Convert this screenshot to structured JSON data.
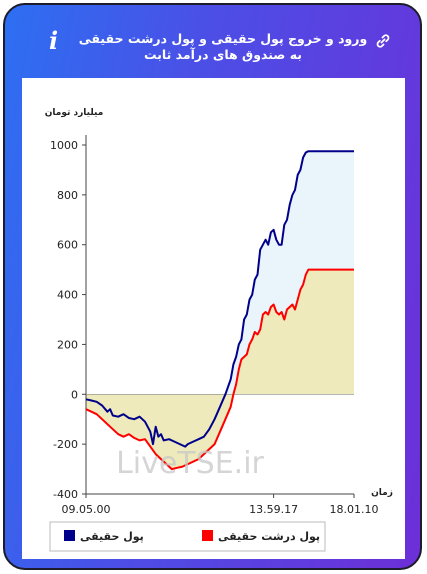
{
  "header": {
    "title": "ورود و خروج پول حقیقی و پول درشت حقیقی به صندوق های درآمد ثابت",
    "info_icon": "info-icon",
    "link_icon": "link-icon"
  },
  "watermark": "LiveTSE.ir",
  "chart_data": {
    "type": "line",
    "ylabel": "میلیارد تومان",
    "xlabel": "زمان",
    "ylim": [
      -400,
      1000
    ],
    "yticks": [
      -400,
      -200,
      0,
      200,
      400,
      600,
      800,
      1000
    ],
    "xtick_labels": [
      "09.05.00",
      "13.59.17",
      "18.01.10"
    ],
    "xlim": [
      0,
      100
    ],
    "xtick_positions": [
      0,
      70,
      100
    ],
    "grid": false,
    "legend_position": "bottom",
    "series": [
      {
        "name": "پول حقیقی",
        "color": "#00008b",
        "fill": "#eaf4fb",
        "points": [
          [
            0,
            -20
          ],
          [
            2,
            -25
          ],
          [
            4,
            -30
          ],
          [
            6,
            -45
          ],
          [
            8,
            -70
          ],
          [
            9,
            -60
          ],
          [
            10,
            -85
          ],
          [
            12,
            -90
          ],
          [
            14,
            -80
          ],
          [
            16,
            -95
          ],
          [
            18,
            -100
          ],
          [
            20,
            -90
          ],
          [
            22,
            -110
          ],
          [
            24,
            -150
          ],
          [
            25,
            -200
          ],
          [
            26,
            -130
          ],
          [
            27,
            -170
          ],
          [
            28,
            -160
          ],
          [
            29,
            -185
          ],
          [
            31,
            -180
          ],
          [
            33,
            -190
          ],
          [
            35,
            -200
          ],
          [
            37,
            -210
          ],
          [
            38,
            -200
          ],
          [
            40,
            -190
          ],
          [
            42,
            -180
          ],
          [
            44,
            -170
          ],
          [
            46,
            -140
          ],
          [
            48,
            -100
          ],
          [
            50,
            -50
          ],
          [
            52,
            0
          ],
          [
            54,
            60
          ],
          [
            55,
            120
          ],
          [
            56,
            150
          ],
          [
            57,
            200
          ],
          [
            58,
            220
          ],
          [
            59,
            300
          ],
          [
            60,
            320
          ],
          [
            61,
            380
          ],
          [
            62,
            400
          ],
          [
            63,
            460
          ],
          [
            64,
            480
          ],
          [
            65,
            580
          ],
          [
            66,
            600
          ],
          [
            67,
            620
          ],
          [
            68,
            600
          ],
          [
            69,
            650
          ],
          [
            70,
            660
          ],
          [
            71,
            620
          ],
          [
            72,
            600
          ],
          [
            73,
            600
          ],
          [
            74,
            680
          ],
          [
            75,
            700
          ],
          [
            76,
            760
          ],
          [
            77,
            800
          ],
          [
            78,
            820
          ],
          [
            79,
            880
          ],
          [
            80,
            900
          ],
          [
            81,
            950
          ],
          [
            82,
            970
          ],
          [
            83,
            975
          ],
          [
            100,
            975
          ]
        ]
      },
      {
        "name": "پول درشت حقیقی",
        "color": "#ff0000",
        "fill": "#eeeabb",
        "points": [
          [
            0,
            -60
          ],
          [
            2,
            -70
          ],
          [
            4,
            -80
          ],
          [
            6,
            -100
          ],
          [
            8,
            -120
          ],
          [
            10,
            -140
          ],
          [
            12,
            -160
          ],
          [
            14,
            -170
          ],
          [
            16,
            -160
          ],
          [
            18,
            -175
          ],
          [
            20,
            -185
          ],
          [
            22,
            -180
          ],
          [
            24,
            -210
          ],
          [
            26,
            -240
          ],
          [
            28,
            -260
          ],
          [
            30,
            -280
          ],
          [
            32,
            -300
          ],
          [
            34,
            -295
          ],
          [
            36,
            -290
          ],
          [
            38,
            -280
          ],
          [
            40,
            -270
          ],
          [
            42,
            -260
          ],
          [
            44,
            -240
          ],
          [
            46,
            -220
          ],
          [
            48,
            -200
          ],
          [
            50,
            -150
          ],
          [
            52,
            -100
          ],
          [
            54,
            -50
          ],
          [
            55,
            0
          ],
          [
            56,
            40
          ],
          [
            57,
            100
          ],
          [
            58,
            140
          ],
          [
            59,
            150
          ],
          [
            60,
            160
          ],
          [
            61,
            200
          ],
          [
            62,
            220
          ],
          [
            63,
            250
          ],
          [
            64,
            240
          ],
          [
            65,
            260
          ],
          [
            66,
            320
          ],
          [
            67,
            330
          ],
          [
            68,
            320
          ],
          [
            69,
            350
          ],
          [
            70,
            360
          ],
          [
            71,
            330
          ],
          [
            72,
            320
          ],
          [
            73,
            330
          ],
          [
            74,
            300
          ],
          [
            75,
            340
          ],
          [
            76,
            350
          ],
          [
            77,
            360
          ],
          [
            78,
            340
          ],
          [
            79,
            380
          ],
          [
            80,
            420
          ],
          [
            81,
            440
          ],
          [
            82,
            480
          ],
          [
            83,
            500
          ],
          [
            100,
            500
          ]
        ]
      }
    ]
  }
}
